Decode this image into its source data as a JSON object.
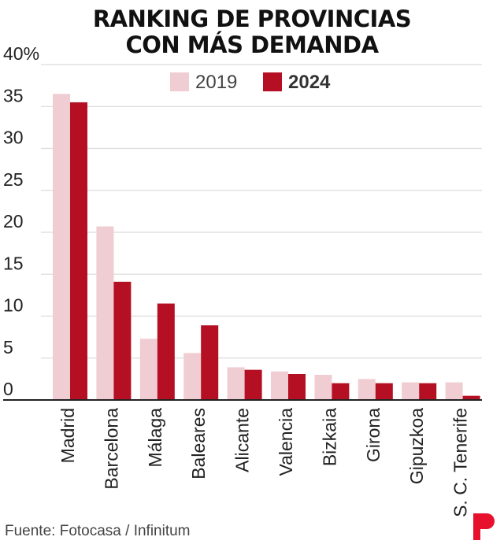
{
  "chart_data": {
    "type": "bar",
    "title": [
      "RANKING DE PROVINCIAS",
      "CON MÁS DEMANDA"
    ],
    "xlabel": "",
    "ylabel": "",
    "categories": [
      "Madrid",
      "Barcelona",
      "Málaga",
      "Baleares",
      "Alicante",
      "Valencia",
      "Bizkaia",
      "Girona",
      "Gipuzkoa",
      "S. C. Tenerife"
    ],
    "series": [
      {
        "name": "2019",
        "color": "#f0cdd2",
        "values": [
          36.5,
          20.7,
          7.3,
          5.6,
          3.9,
          3.4,
          3.0,
          2.5,
          2.1,
          2.1
        ]
      },
      {
        "name": "2024",
        "color": "#b40f23",
        "values": [
          35.5,
          14.1,
          11.5,
          8.9,
          3.6,
          3.1,
          2.0,
          2.0,
          2.0,
          0.5
        ]
      }
    ],
    "ylim": [
      0,
      40
    ],
    "yticks": [
      "0",
      "5",
      "10",
      "15",
      "20",
      "25",
      "30",
      "35",
      "40%"
    ],
    "grid": true,
    "legend": "top-center"
  },
  "footer": {
    "source": "Fuente: Fotocasa / Infinitum"
  },
  "logo": {
    "icon": "fotocasa-p-logo-icon",
    "color": "#e8112d"
  }
}
